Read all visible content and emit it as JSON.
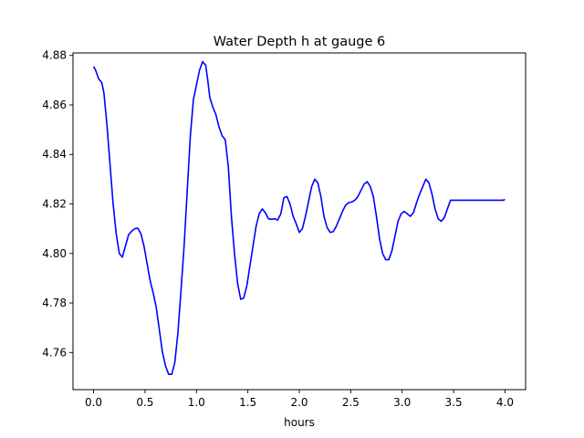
{
  "chart_data": {
    "type": "line",
    "title": "Water Depth h at gauge 6",
    "xlabel": "hours",
    "ylabel": "",
    "xlim": [
      -0.2,
      4.2
    ],
    "ylim": [
      4.745,
      4.881
    ],
    "xticks": [
      0.0,
      0.5,
      1.0,
      1.5,
      2.0,
      2.5,
      3.0,
      3.5,
      4.0
    ],
    "xtick_labels": [
      "0.0",
      "0.5",
      "1.0",
      "1.5",
      "2.0",
      "2.5",
      "3.0",
      "3.5",
      "4.0"
    ],
    "yticks": [
      4.76,
      4.78,
      4.8,
      4.82,
      4.84,
      4.86,
      4.88
    ],
    "ytick_labels": [
      "4.76",
      "4.78",
      "4.80",
      "4.82",
      "4.84",
      "4.86",
      "4.88"
    ],
    "grid": false,
    "legend": false,
    "series": [
      {
        "color": "#0000ff",
        "x": [
          0.0,
          0.02,
          0.05,
          0.08,
          0.1,
          0.13,
          0.16,
          0.19,
          0.22,
          0.25,
          0.28,
          0.31,
          0.34,
          0.37,
          0.4,
          0.43,
          0.46,
          0.49,
          0.52,
          0.55,
          0.58,
          0.61,
          0.64,
          0.67,
          0.7,
          0.73,
          0.76,
          0.79,
          0.82,
          0.85,
          0.88,
          0.91,
          0.94,
          0.97,
          1.0,
          1.03,
          1.06,
          1.09,
          1.11,
          1.13,
          1.16,
          1.19,
          1.22,
          1.25,
          1.28,
          1.31,
          1.34,
          1.37,
          1.4,
          1.43,
          1.46,
          1.49,
          1.52,
          1.55,
          1.58,
          1.61,
          1.64,
          1.67,
          1.7,
          1.73,
          1.76,
          1.79,
          1.82,
          1.85,
          1.88,
          1.91,
          1.94,
          1.97,
          2.0,
          2.03,
          2.06,
          2.09,
          2.12,
          2.15,
          2.18,
          2.21,
          2.24,
          2.27,
          2.3,
          2.33,
          2.36,
          2.39,
          2.42,
          2.45,
          2.48,
          2.51,
          2.54,
          2.57,
          2.6,
          2.63,
          2.66,
          2.69,
          2.72,
          2.75,
          2.78,
          2.81,
          2.84,
          2.87,
          2.9,
          2.93,
          2.96,
          2.99,
          3.02,
          3.05,
          3.08,
          3.11,
          3.14,
          3.17,
          3.2,
          3.23,
          3.26,
          3.29,
          3.32,
          3.35,
          3.38,
          3.41,
          3.44,
          3.47,
          3.5,
          3.53,
          3.56,
          3.59,
          3.62,
          3.65,
          3.68,
          3.71,
          3.74,
          3.77,
          3.8,
          3.83,
          3.86,
          3.89,
          3.92,
          3.95,
          3.98,
          4.0
        ],
        "y": [
          4.8755,
          4.874,
          4.8705,
          4.869,
          4.865,
          4.852,
          4.836,
          4.82,
          4.808,
          4.8,
          4.7985,
          4.803,
          4.8075,
          4.809,
          4.81,
          4.8102,
          4.808,
          4.803,
          4.796,
          4.789,
          4.784,
          4.778,
          4.769,
          4.76,
          4.7545,
          4.7512,
          4.7512,
          4.756,
          4.768,
          4.785,
          4.803,
          4.825,
          4.847,
          4.862,
          4.868,
          4.874,
          4.8775,
          4.876,
          4.87,
          4.863,
          4.859,
          4.856,
          4.851,
          4.8475,
          4.846,
          4.835,
          4.815,
          4.8,
          4.788,
          4.7815,
          4.782,
          4.787,
          4.795,
          4.803,
          4.811,
          4.816,
          4.818,
          4.8165,
          4.814,
          4.8138,
          4.814,
          4.8135,
          4.816,
          4.8225,
          4.823,
          4.82,
          4.815,
          4.812,
          4.8085,
          4.81,
          4.815,
          4.821,
          4.827,
          4.83,
          4.8285,
          4.823,
          4.815,
          4.8105,
          4.8085,
          4.8088,
          4.811,
          4.814,
          4.817,
          4.8195,
          4.8205,
          4.8208,
          4.8215,
          4.823,
          4.8255,
          4.828,
          4.829,
          4.827,
          4.823,
          4.815,
          4.806,
          4.8,
          4.7975,
          4.7975,
          4.801,
          4.807,
          4.813,
          4.816,
          4.817,
          4.816,
          4.815,
          4.8165,
          4.8205,
          4.824,
          4.827,
          4.83,
          4.8285,
          4.824,
          4.818,
          4.814,
          4.813,
          4.8145,
          4.818,
          4.8215,
          4.8215,
          4.8215,
          4.8215,
          4.8215,
          4.8215,
          4.8215,
          4.8215,
          4.8215,
          4.8215,
          4.8215,
          4.8215,
          4.8215,
          4.8215,
          4.8215,
          4.8215,
          4.8215,
          4.8215,
          4.8218
        ]
      }
    ]
  }
}
